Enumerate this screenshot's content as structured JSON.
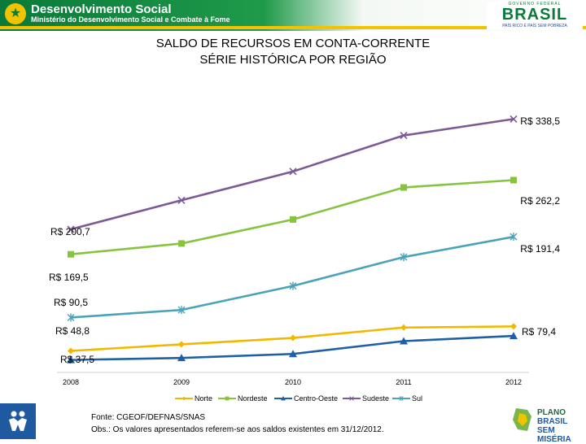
{
  "header": {
    "title": "Desenvolvimento Social",
    "subtitle": "Ministério do Desenvolvimento Social e Combate à Fome",
    "gov_top": "GOVERNO FEDERAL",
    "gov_word": "BRASIL",
    "gov_slogan": "PAÍS RICO É PAÍS SEM POBREZA"
  },
  "title_line1": "SALDO DE RECURSOS EM CONTA-CORRENTE",
  "title_line2": "SÉRIE HISTÓRICA POR REGIÃO",
  "footer": {
    "source": "Fonte: CGEOF/DEFNAS/SNAS",
    "note": "Obs.: Os valores apresentados referem-se aos saldos existentes em 31/12/2012."
  },
  "brand_right": {
    "line1": "PLANO",
    "line2": "BRASIL",
    "line3": "SEM MISÉRIA"
  },
  "colors": {
    "Norte": "#f2b800",
    "Nordeste": "#86c440",
    "Centro-Oeste": "#1f5fa6",
    "Sudeste": "#7b5a96",
    "Sul": "#4aa3b8"
  },
  "chart_data": {
    "type": "line",
    "title": "SALDO DE RECURSOS EM CONTA-CORRENTE SÉRIE HISTÓRICA POR REGIÃO",
    "xlabel": "",
    "ylabel": "",
    "x": [
      "2008",
      "2009",
      "2010",
      "2011",
      "2012"
    ],
    "ylim": [
      30,
      345
    ],
    "grid": false,
    "legend": "bottom",
    "series": [
      {
        "name": "Norte",
        "values": [
          48.8,
          57,
          65,
          78,
          79.4
        ],
        "marker": "diamond",
        "labels": [
          "R$ 48,8",
          "",
          "",
          "",
          "R$ 79,4"
        ]
      },
      {
        "name": "Nordeste",
        "values": [
          169.5,
          183,
          213,
          253,
          262.2
        ],
        "marker": "square",
        "labels": [
          "R$ 169,5",
          "",
          "",
          "",
          "R$ 262,2"
        ]
      },
      {
        "name": "Centro-Oeste",
        "values": [
          37.5,
          40,
          45,
          61,
          67.5
        ],
        "marker": "triangle",
        "labels": [
          "R$ 37,5",
          "",
          "",
          "",
          ""
        ]
      },
      {
        "name": "Sudeste",
        "values": [
          200.7,
          237,
          273,
          318,
          338.5
        ],
        "marker": "x",
        "labels": [
          "R$ 200,7",
          "",
          "",
          "",
          "R$ 338,5"
        ]
      },
      {
        "name": "Sul",
        "values": [
          90.5,
          100,
          130,
          166,
          191.4
        ],
        "marker": "star",
        "labels": [
          "R$ 90,5",
          "",
          "",
          "",
          "R$ 191,4"
        ]
      }
    ]
  }
}
